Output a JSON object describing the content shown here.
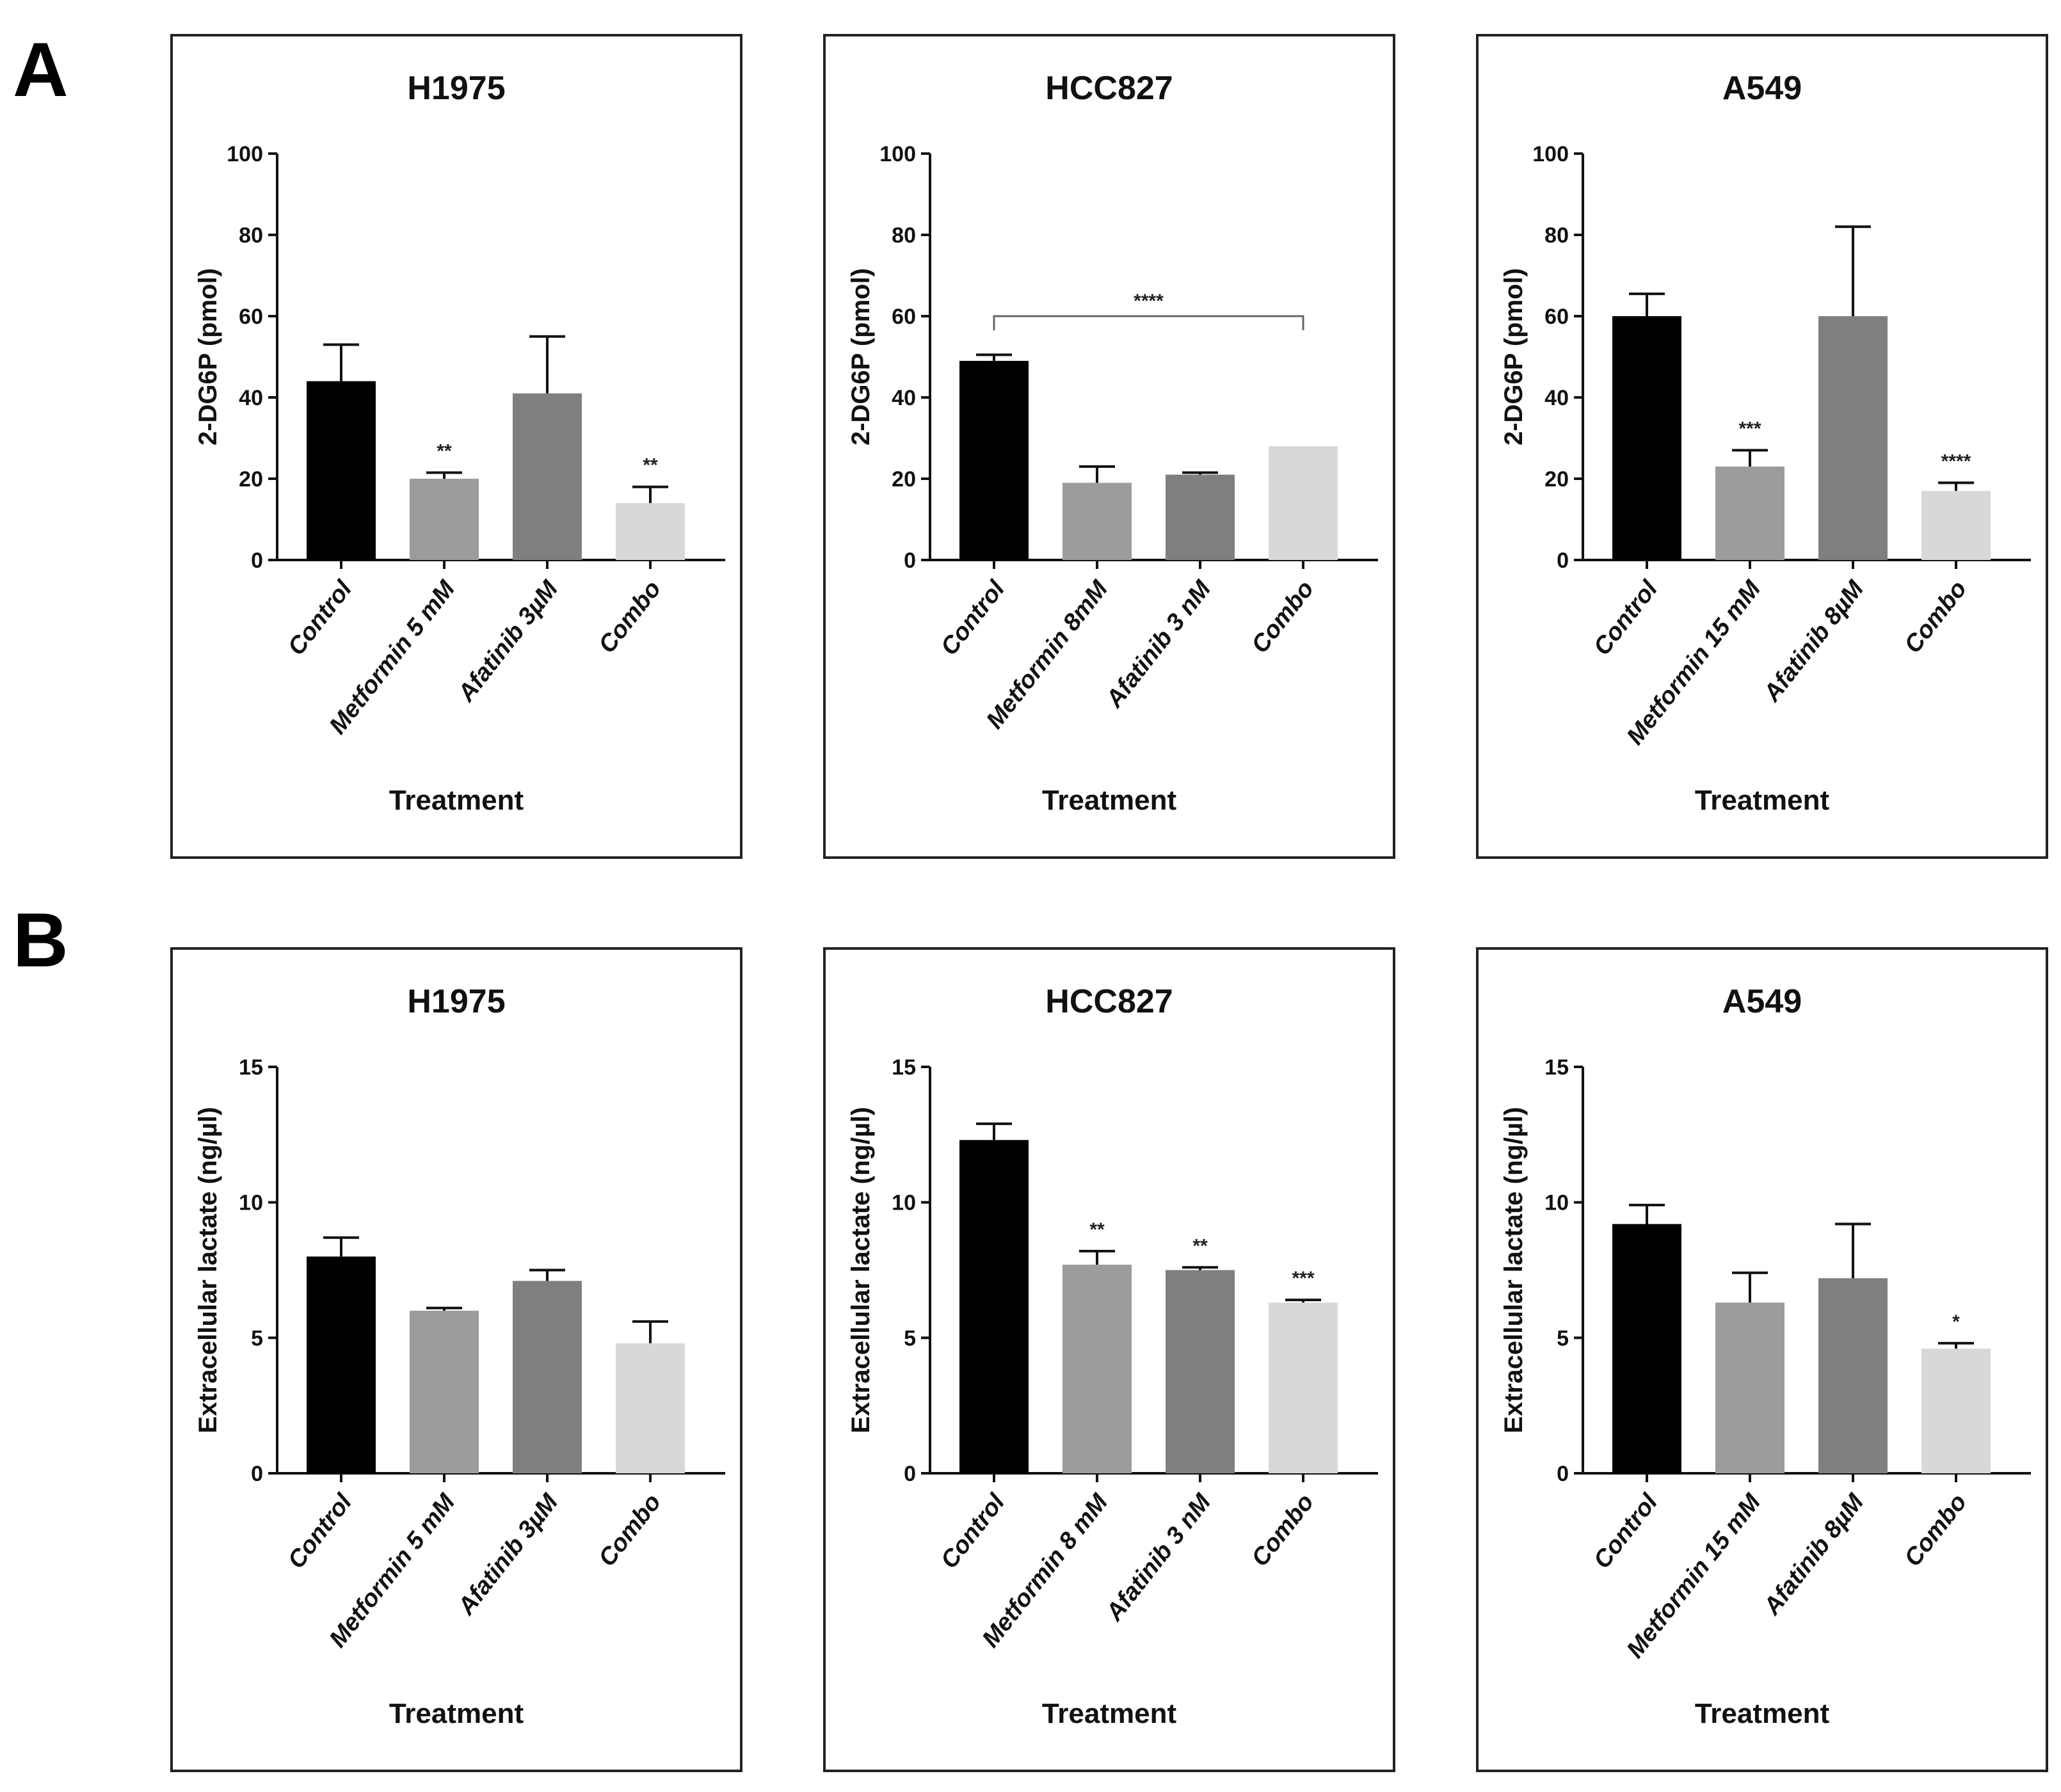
{
  "panels": [
    {
      "label": "A"
    },
    {
      "label": "B"
    }
  ],
  "colors": {
    "bar_fills": [
      "#000000",
      "#9c9c9e",
      "#7f7f7f",
      "#d8d8d8"
    ],
    "axis": "#111111",
    "frame": "#222222",
    "bracket": "#666666"
  },
  "chart_data": [
    {
      "type": "bar",
      "panel": "A",
      "row": 0,
      "col": 0,
      "title": "H1975",
      "xlabel": "Treatment",
      "ylabel": "2-DG6P (pmol)",
      "ylim": [
        0,
        100
      ],
      "yticks": [
        0,
        20,
        40,
        60,
        80,
        100
      ],
      "categories": [
        "Control",
        "Metformin 5 mM",
        "Afatinib 3µM",
        "Combo"
      ],
      "values": [
        44,
        20,
        41,
        14
      ],
      "errors": [
        9,
        1.5,
        14,
        4
      ],
      "significance": [
        "",
        "**",
        "",
        "**"
      ]
    },
    {
      "type": "bar",
      "panel": "A",
      "row": 0,
      "col": 1,
      "title": "HCC827",
      "xlabel": "Treatment",
      "ylabel": "2-DG6P (pmol)",
      "ylim": [
        0,
        100
      ],
      "yticks": [
        0,
        20,
        40,
        60,
        80,
        100
      ],
      "categories": [
        "Control",
        "Metformin 8mM",
        "Afatinib 3 nM",
        "Combo"
      ],
      "values": [
        49,
        19,
        21,
        28
      ],
      "errors": [
        1.5,
        4,
        0.5,
        0
      ],
      "significance": [
        "",
        "",
        "",
        ""
      ],
      "bracket": {
        "from": 0,
        "to": 3,
        "label": "****",
        "y": 60
      }
    },
    {
      "type": "bar",
      "panel": "A",
      "row": 0,
      "col": 2,
      "title": "A549",
      "xlabel": "Treatment",
      "ylabel": "2-DG6P (pmol)",
      "ylim": [
        0,
        100
      ],
      "yticks": [
        0,
        20,
        40,
        60,
        80,
        100
      ],
      "categories": [
        "Control",
        "Metformin 15 mM",
        "Afatinib 8µM",
        "Combo"
      ],
      "values": [
        60,
        23,
        60,
        17
      ],
      "errors": [
        5.5,
        4,
        22,
        2
      ],
      "significance": [
        "",
        "***",
        "",
        "****"
      ]
    },
    {
      "type": "bar",
      "panel": "B",
      "row": 1,
      "col": 0,
      "title": "H1975",
      "xlabel": "Treatment",
      "ylabel": "Extracellular lactate (ng/µl)",
      "ylim": [
        0,
        15
      ],
      "yticks": [
        0,
        5,
        10,
        15
      ],
      "categories": [
        "Control",
        "Metformin 5 mM",
        "Afatinib 3µM",
        "Combo"
      ],
      "values": [
        8.0,
        6.0,
        7.1,
        4.8
      ],
      "errors": [
        0.7,
        0.1,
        0.4,
        0.8
      ],
      "significance": [
        "",
        "",
        "",
        ""
      ]
    },
    {
      "type": "bar",
      "panel": "B",
      "row": 1,
      "col": 1,
      "title": "HCC827",
      "xlabel": "Treatment",
      "ylabel": "Extracellular lactate (ng/µl)",
      "ylim": [
        0,
        15
      ],
      "yticks": [
        0,
        5,
        10,
        15
      ],
      "categories": [
        "Control",
        "Metformin 8 mM",
        "Afatinib 3 nM",
        "Combo"
      ],
      "values": [
        12.3,
        7.7,
        7.5,
        6.3
      ],
      "errors": [
        0.6,
        0.5,
        0.1,
        0.1
      ],
      "significance": [
        "",
        "**",
        "**",
        "***"
      ]
    },
    {
      "type": "bar",
      "panel": "B",
      "row": 1,
      "col": 2,
      "title": "A549",
      "xlabel": "Treatment",
      "ylabel": "Extracellular lactate (ng/µl)",
      "ylim": [
        0,
        15
      ],
      "yticks": [
        0,
        5,
        10,
        15
      ],
      "categories": [
        "Control",
        "Metformin 15 mM",
        "Afatinib 8µM",
        "Combo"
      ],
      "values": [
        9.2,
        6.3,
        7.2,
        4.6
      ],
      "errors": [
        0.7,
        1.1,
        2.0,
        0.2
      ],
      "significance": [
        "",
        "",
        "",
        "*"
      ]
    }
  ]
}
